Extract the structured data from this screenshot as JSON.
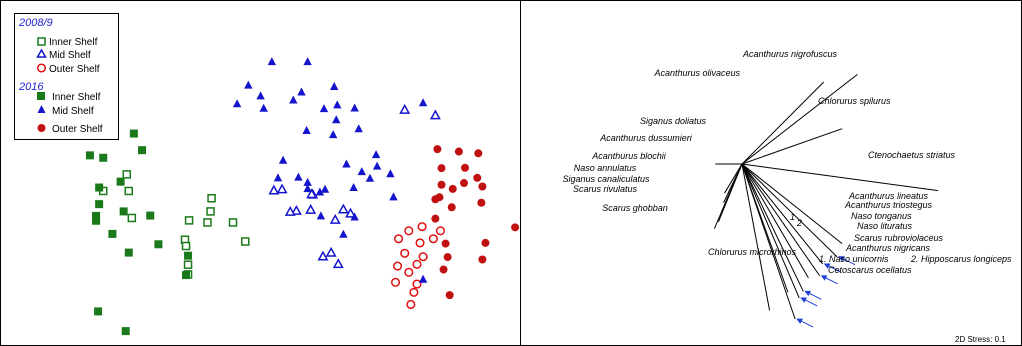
{
  "colors": {
    "inner": "#1a7a1a",
    "mid": "#1414cc",
    "outer_open": "#e01010",
    "outer_fill": "#c01010",
    "vector_blue": "#1f3fd6"
  },
  "legend": {
    "group1_title": "2008/9",
    "group1_items": [
      "Inner Shelf",
      "Mid Shelf",
      "Outer Shelf"
    ],
    "group2_title": "2016",
    "group2_items": [
      "Inner Shelf",
      "Mid Shelf",
      "Outer Shelf"
    ]
  },
  "stress_label": "2D Stress: 0.1",
  "chart_data": [
    {
      "type": "scatter",
      "title": "",
      "xlabel": "",
      "ylabel": "",
      "xlim": [
        0,
        100
      ],
      "ylim": [
        0,
        100
      ],
      "series": [
        {
          "name": "2008/9 Inner Shelf",
          "marker": "square-open",
          "points": [
            [
              12.4,
              49.6
            ],
            [
              10.1,
              44.8
            ],
            [
              12.6,
              44.8
            ],
            [
              20.7,
              42.7
            ],
            [
              20.6,
              38.9
            ],
            [
              18.5,
              36.3
            ],
            [
              20.3,
              35.7
            ],
            [
              22.8,
              35.7
            ],
            [
              18.1,
              30.7
            ],
            [
              18.2,
              28.9
            ],
            [
              18.4,
              23.5
            ],
            [
              18.4,
              20.7
            ],
            [
              24.0,
              30.2
            ],
            [
              12.9,
              37.0
            ]
          ]
        },
        {
          "name": "2008/9 Mid Shelf",
          "marker": "triangle-open",
          "points": [
            [
              39.6,
              68.3
            ],
            [
              42.6,
              66.7
            ],
            [
              27.6,
              45.3
            ],
            [
              30.6,
              43.8
            ],
            [
              29.0,
              39.1
            ],
            [
              30.4,
              39.4
            ],
            [
              26.8,
              45.0
            ],
            [
              33.6,
              39.5
            ],
            [
              34.3,
              38.3
            ],
            [
              32.8,
              36.5
            ],
            [
              30.5,
              43.9
            ],
            [
              28.4,
              38.8
            ],
            [
              31.6,
              25.9
            ],
            [
              33.1,
              23.7
            ],
            [
              32.4,
              27.0
            ]
          ]
        },
        {
          "name": "2008/9 Outer Shelf",
          "marker": "circle-open",
          "points": [
            [
              39.0,
              31.0
            ],
            [
              41.3,
              34.5
            ],
            [
              40.0,
              33.3
            ],
            [
              42.4,
              31.0
            ],
            [
              43.1,
              33.3
            ],
            [
              41.1,
              29.8
            ],
            [
              39.6,
              26.8
            ],
            [
              41.4,
              25.8
            ],
            [
              40.8,
              23.6
            ],
            [
              38.9,
              23.1
            ],
            [
              40.0,
              21.3
            ],
            [
              38.7,
              18.4
            ],
            [
              40.8,
              17.9
            ],
            [
              40.5,
              15.5
            ],
            [
              40.2,
              12.0
            ]
          ]
        },
        {
          "name": "2016 Inner Shelf",
          "marker": "square-filled",
          "points": [
            [
              13.1,
              61.4
            ],
            [
              13.9,
              56.6
            ],
            [
              8.8,
              55.1
            ],
            [
              10.1,
              54.4
            ],
            [
              11.8,
              47.5
            ],
            [
              9.7,
              45.8
            ],
            [
              9.7,
              41.0
            ],
            [
              12.1,
              38.9
            ],
            [
              14.7,
              37.7
            ],
            [
              9.4,
              37.6
            ],
            [
              9.4,
              36.2
            ],
            [
              11.0,
              32.4
            ],
            [
              15.5,
              29.4
            ],
            [
              12.6,
              27.0
            ],
            [
              18.4,
              26.1
            ],
            [
              18.2,
              20.5
            ],
            [
              9.6,
              10.0
            ],
            [
              12.3,
              4.3
            ]
          ]
        },
        {
          "name": "2016 Mid Shelf",
          "marker": "triangle-filled",
          "points": [
            [
              26.6,
              82.2
            ],
            [
              30.1,
              82.2
            ],
            [
              24.3,
              75.4
            ],
            [
              29.5,
              73.4
            ],
            [
              32.7,
              75.0
            ],
            [
              25.5,
              72.3
            ],
            [
              33.0,
              69.7
            ],
            [
              28.7,
              71.1
            ],
            [
              23.2,
              70.0
            ],
            [
              25.8,
              68.7
            ],
            [
              34.7,
              68.8
            ],
            [
              31.7,
              68.6
            ],
            [
              32.9,
              65.4
            ],
            [
              35.1,
              62.8
            ],
            [
              30.0,
              62.3
            ],
            [
              32.6,
              61.1
            ],
            [
              36.8,
              55.3
            ],
            [
              36.9,
              52.0
            ],
            [
              27.7,
              53.7
            ],
            [
              27.2,
              48.6
            ],
            [
              29.2,
              48.8
            ],
            [
              30.1,
              45.5
            ],
            [
              34.6,
              45.8
            ],
            [
              33.9,
              52.6
            ],
            [
              35.4,
              50.4
            ],
            [
              36.2,
              48.5
            ],
            [
              31.8,
              45.3
            ],
            [
              30.1,
              47.3
            ],
            [
              38.2,
              49.8
            ],
            [
              41.4,
              19.3
            ],
            [
              38.5,
              43.1
            ],
            [
              31.3,
              44.5
            ],
            [
              41.4,
              70.3
            ],
            [
              31.4,
              37.6
            ],
            [
              33.6,
              32.3
            ],
            [
              34.7,
              37.3
            ]
          ]
        },
        {
          "name": "2016 Outer Shelf",
          "marker": "circle-filled",
          "points": [
            [
              42.8,
              56.9
            ],
            [
              44.9,
              56.2
            ],
            [
              46.8,
              55.7
            ],
            [
              45.5,
              51.5
            ],
            [
              46.7,
              48.6
            ],
            [
              43.2,
              51.4
            ],
            [
              43.2,
              46.6
            ],
            [
              45.4,
              47.1
            ],
            [
              44.3,
              45.4
            ],
            [
              47.2,
              46.1
            ],
            [
              43.0,
              43.0
            ],
            [
              42.6,
              42.4
            ],
            [
              47.1,
              41.4
            ],
            [
              44.2,
              40.1
            ],
            [
              42.6,
              36.8
            ],
            [
              50.4,
              34.3
            ],
            [
              47.5,
              29.8
            ],
            [
              43.6,
              29.6
            ],
            [
              43.8,
              25.7
            ],
            [
              47.2,
              25.0
            ],
            [
              43.4,
              22.1
            ],
            [
              44.0,
              14.7
            ]
          ]
        }
      ]
    },
    {
      "type": "vector",
      "title": "",
      "labels": [
        {
          "text": "Acanthurus olivaceus",
          "tip": [
            80.6,
            76.3
          ]
        },
        {
          "text": "Acanthurus nigrofuscus",
          "tip": [
            83.9,
            78.5
          ]
        },
        {
          "text": "Chlorurus spilurus",
          "tip": [
            82.4,
            62.8
          ]
        },
        {
          "text": "Siganus doliatus",
          "tip": [
            70.0,
            52.6
          ]
        },
        {
          "text": "Acanthurus dussumieri",
          "tip": [
            72.0,
            48.5
          ]
        },
        {
          "text": "Ctenochaetus striatus",
          "tip": [
            91.8,
            44.9
          ]
        },
        {
          "text": "Acanthurus blochii",
          "tip": [
            70.9,
            44.2
          ]
        },
        {
          "text": "Naso annulatus",
          "tip": [
            70.8,
            41.4
          ]
        },
        {
          "text": "Siganus canaliculatus",
          "tip": [
            70.6,
            38.7
          ]
        },
        {
          "text": "Scarus rivulatus",
          "tip": [
            70.3,
            35.9
          ]
        },
        {
          "text": "Scarus ghobban",
          "tip": [
            69.9,
            33.9
          ]
        },
        {
          "text": "Acanthurus lineatus",
          "tip": [
            82.4,
            29.6
          ]
        },
        {
          "text": "Acanthurus triostegus",
          "tip": [
            81.9,
            25.8
          ]
        },
        {
          "text": "Naso tonganus",
          "tip": [
            80.5,
            23.7
          ]
        },
        {
          "text": "Naso lituratus",
          "tip": [
            80.2,
            20.3
          ]
        },
        {
          "text": "Scarus rubroviolaceus",
          "tip": [
            79.1,
            19.7
          ]
        },
        {
          "text": "Acanthurus nigricans",
          "tip": [
            78.6,
            15.8
          ]
        },
        {
          "text": "1. Naso unicornis",
          "tip": [
            77.1,
            15.5
          ]
        },
        {
          "text": "2. Hipposcarus longiceps",
          "tip": [
            78.2,
            13.9
          ]
        },
        {
          "text": "Chlorurus microrhinos",
          "tip": [
            75.3,
            10.3
          ]
        },
        {
          "text": "Cetoscarus ocellatus",
          "tip": [
            77.8,
            7.8
          ]
        }
      ],
      "markers": [
        "1",
        "2"
      ]
    }
  ]
}
